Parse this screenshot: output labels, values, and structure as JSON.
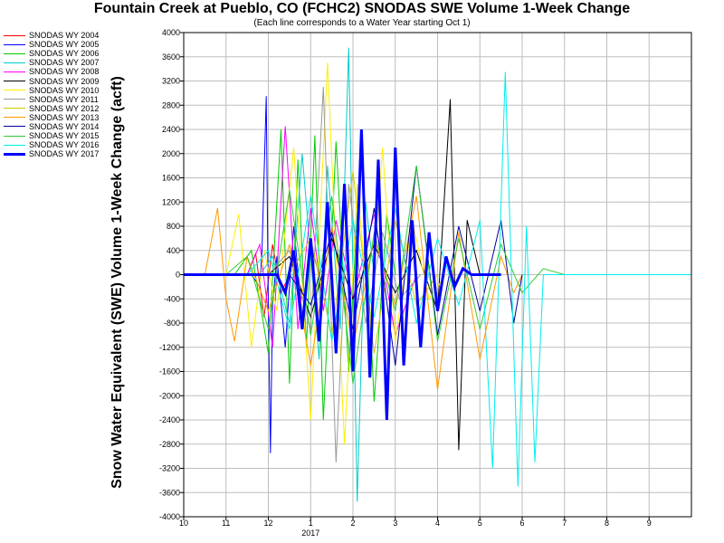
{
  "chart_data": {
    "type": "line",
    "title": "Fountain Creek at Pueblo, CO (FCHC2) SNODAS SWE Volume 1-Week Change",
    "subtitle": "(Each line corresponds to a Water Year starting Oct 1)",
    "ylabel": "Snow Water Equivalent (SWE) Volume 1-Week Change (acft)",
    "xlabel": "",
    "x_ticks": [
      "10",
      "11",
      "12",
      "1",
      "2",
      "3",
      "4",
      "5",
      "6",
      "7",
      "8",
      "9"
    ],
    "x_year_label": "2017",
    "xlim": [
      0,
      12
    ],
    "ylim": [
      -4000,
      4000
    ],
    "y_ticks": [
      -4000,
      -3600,
      -3200,
      -2800,
      -2400,
      -2000,
      -1600,
      -1200,
      -800,
      -400,
      0,
      400,
      800,
      1200,
      1600,
      2000,
      2400,
      2800,
      3200,
      3600,
      4000
    ],
    "grid": true,
    "legend_position": "left",
    "series": [
      {
        "name": "SNODAS WY 2004",
        "color": "#ff0000",
        "width": 1,
        "x": [
          1.5,
          1.7,
          1.9,
          2.1,
          2.3,
          2.5
        ],
        "y": [
          0,
          350,
          -700,
          500,
          -300,
          0
        ]
      },
      {
        "name": "SNODAS WY 2005",
        "color": "#0000ff",
        "width": 1,
        "x": [
          1.6,
          1.8,
          1.85,
          1.95,
          2.0,
          2.05,
          2.1,
          2.2,
          2.4,
          2.6,
          2.8,
          3.0,
          3.2
        ],
        "y": [
          0,
          -200,
          400,
          2950,
          -600,
          -2950,
          -500,
          300,
          -1200,
          800,
          -700,
          500,
          0
        ]
      },
      {
        "name": "SNODAS WY 2006",
        "color": "#00cc00",
        "width": 1,
        "x": [
          1.2,
          1.6,
          2.0,
          2.3,
          2.5,
          2.7,
          2.9,
          3.1,
          3.3,
          3.6,
          3.9,
          4.2,
          4.5,
          4.8,
          5.0
        ],
        "y": [
          0,
          400,
          -1300,
          2400,
          -1800,
          1900,
          -1200,
          2300,
          -2400,
          2200,
          -1600,
          2300,
          -2100,
          1000,
          0
        ]
      },
      {
        "name": "SNODAS WY 2007",
        "color": "#00cccc",
        "width": 1,
        "x": [
          1.8,
          2.1,
          2.5,
          2.8,
          3.2,
          3.4,
          3.7,
          3.9,
          4.1,
          4.3,
          4.5
        ],
        "y": [
          0,
          300,
          -800,
          2000,
          -1400,
          1800,
          -900,
          3750,
          -3750,
          1200,
          0
        ]
      },
      {
        "name": "SNODAS WY 2008",
        "color": "#ff00ff",
        "width": 1,
        "x": [
          1.5,
          1.8,
          2.1,
          2.4,
          2.7,
          3.0,
          3.3,
          3.6,
          4.0,
          4.5,
          5.0,
          5.5
        ],
        "y": [
          0,
          500,
          -1200,
          2450,
          -900,
          1100,
          -600,
          900,
          -400,
          1000,
          -1000,
          0
        ]
      },
      {
        "name": "SNODAS WY 2009",
        "color": "#000000",
        "width": 1,
        "x": [
          2.0,
          2.5,
          3.0,
          3.5,
          4.0,
          4.5,
          5.0,
          5.5,
          6.0,
          6.3,
          6.5,
          6.7,
          7.0
        ],
        "y": [
          0,
          300,
          -700,
          600,
          -400,
          500,
          -300,
          400,
          -600,
          2900,
          -2900,
          900,
          0
        ]
      },
      {
        "name": "SNODAS WY 2010",
        "color": "#ffee00",
        "width": 1,
        "x": [
          1.0,
          1.3,
          1.6,
          1.9,
          2.2,
          2.6,
          3.0,
          3.4,
          3.8,
          4.1,
          4.4,
          4.7,
          5.0,
          5.4,
          5.8,
          6.2
        ],
        "y": [
          0,
          1000,
          -1200,
          400,
          -600,
          2100,
          -2400,
          3500,
          -2800,
          1500,
          -900,
          2100,
          -1100,
          900,
          -400,
          0
        ]
      },
      {
        "name": "SNODAS WY 2011",
        "color": "#999999",
        "width": 1,
        "x": [
          2.0,
          2.5,
          3.0,
          3.3,
          3.6,
          3.9,
          4.3,
          4.7,
          5.1,
          5.6
        ],
        "y": [
          0,
          400,
          -900,
          3100,
          -3100,
          1500,
          -800,
          700,
          -400,
          0
        ]
      },
      {
        "name": "SNODAS WY 2012",
        "color": "#cccc00",
        "width": 1,
        "x": [
          2.5,
          3.0,
          3.5,
          4.0,
          4.5,
          5.0,
          5.5,
          6.0
        ],
        "y": [
          0,
          600,
          -1000,
          1700,
          -1300,
          900,
          -500,
          0
        ]
      },
      {
        "name": "SNODAS WY 2013",
        "color": "#ff9900",
        "width": 1,
        "x": [
          0.5,
          0.8,
          1.0,
          1.2,
          1.5,
          2.0,
          2.5,
          3.0,
          3.5,
          4.0,
          4.5,
          5.0,
          5.5,
          6.0,
          6.5,
          7.0,
          7.5,
          7.8,
          8.0
        ],
        "y": [
          0,
          1100,
          -400,
          -1100,
          300,
          -600,
          500,
          -1500,
          800,
          -1200,
          600,
          -500,
          1300,
          -1900,
          700,
          -1400,
          300,
          -300,
          0
        ]
      },
      {
        "name": "SNODAS WY 2014",
        "color": "#000099",
        "width": 1,
        "x": [
          2.5,
          3.0,
          3.5,
          4.0,
          4.5,
          5.0,
          5.5,
          6.0,
          6.5,
          7.0,
          7.5,
          7.8,
          8.0
        ],
        "y": [
          0,
          -500,
          700,
          -900,
          1100,
          -1500,
          1800,
          -1000,
          800,
          -600,
          900,
          -800,
          0
        ]
      },
      {
        "name": "SNODAS WY 2015",
        "color": "#33cc33",
        "width": 1,
        "x": [
          1.0,
          1.5,
          2.0,
          2.5,
          3.0,
          3.5,
          4.0,
          4.5,
          5.0,
          5.5,
          6.0,
          6.5,
          7.0,
          7.5,
          8.0,
          8.5,
          9.0
        ],
        "y": [
          0,
          300,
          -900,
          1400,
          -1000,
          1300,
          -1800,
          700,
          -600,
          1800,
          -1100,
          600,
          -900,
          500,
          -300,
          100,
          0
        ]
      },
      {
        "name": "SNODAS WY 2016",
        "color": "#00eeee",
        "width": 1,
        "x": [
          1.5,
          2.0,
          2.5,
          3.0,
          3.5,
          4.0,
          4.5,
          5.0,
          5.5,
          6.0,
          6.5,
          7.0,
          7.3,
          7.6,
          7.9,
          8.1,
          8.3,
          8.5,
          9.0,
          12.0
        ],
        "y": [
          0,
          400,
          -900,
          1300,
          -1100,
          900,
          -700,
          1100,
          -800,
          600,
          -500,
          900,
          -3200,
          3350,
          -3500,
          800,
          -3100,
          0,
          0,
          0
        ]
      },
      {
        "name": "SNODAS WY 2017",
        "color": "#0000ff",
        "width": 3,
        "x": [
          0.0,
          2.2,
          2.4,
          2.6,
          2.8,
          3.0,
          3.2,
          3.4,
          3.6,
          3.8,
          4.0,
          4.2,
          4.4,
          4.6,
          4.8,
          5.0,
          5.2,
          5.4,
          5.6,
          5.8,
          6.0,
          6.2,
          6.4,
          6.6,
          6.8,
          7.0,
          7.5
        ],
        "y": [
          0,
          0,
          -300,
          400,
          -900,
          600,
          -1100,
          1200,
          -1300,
          1500,
          -1600,
          2400,
          -1700,
          1900,
          -2400,
          2100,
          -1500,
          900,
          -1200,
          700,
          -600,
          300,
          -200,
          100,
          0,
          0,
          0
        ]
      }
    ]
  }
}
